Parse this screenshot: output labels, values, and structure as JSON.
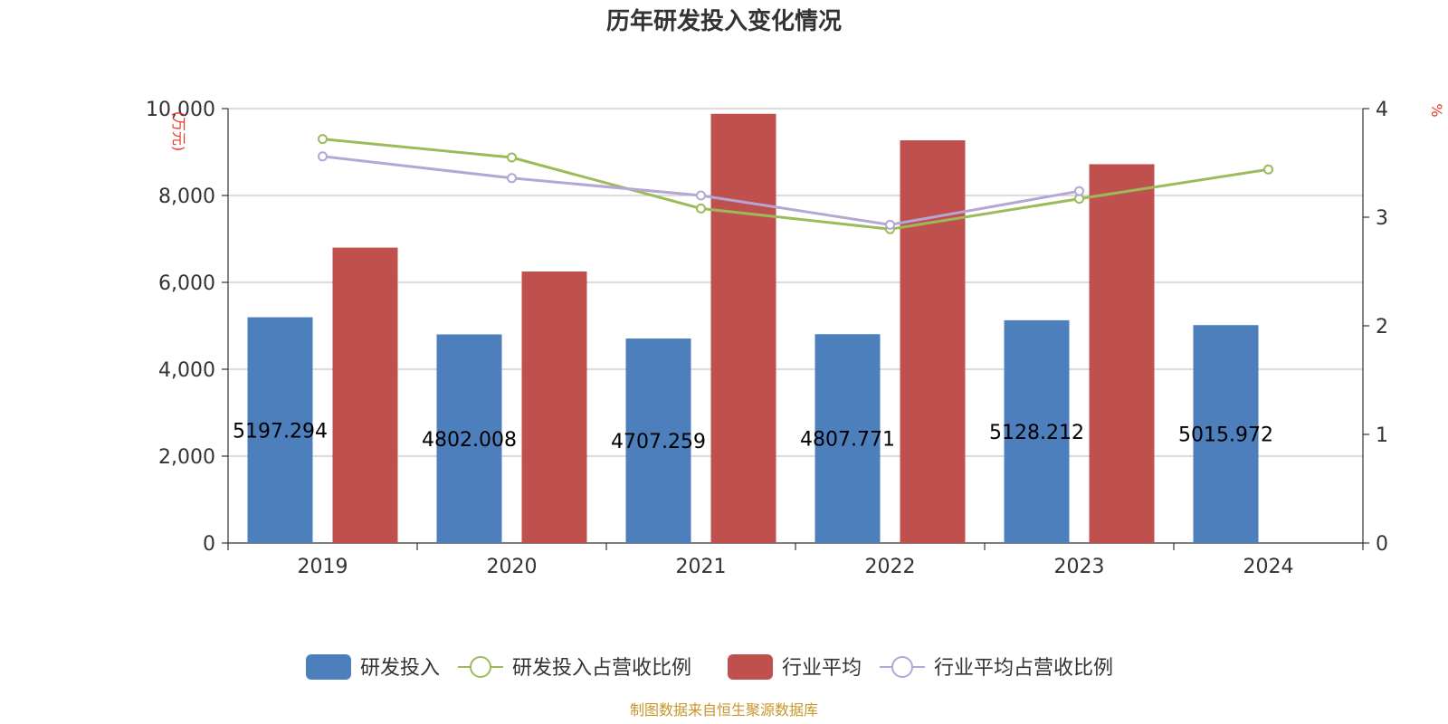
{
  "chart_data": {
    "type": "bar",
    "title": "历年研发投入变化情况",
    "categories": [
      "2019",
      "2020",
      "2021",
      "2022",
      "2023",
      "2024"
    ],
    "y_left": {
      "unit": "(万元)",
      "min": 0,
      "max": 10000,
      "ticks": [
        "0",
        "2,000",
        "4,000",
        "6,000",
        "8,000",
        "10,000"
      ]
    },
    "y_right": {
      "unit": "%",
      "min": 0,
      "max": 4,
      "ticks": [
        "0",
        "1",
        "2",
        "3",
        "4"
      ]
    },
    "grid": true,
    "legend_position": "bottom",
    "series": [
      {
        "name": "研发投入",
        "type": "bar",
        "axis": "left",
        "color": "#4e7fbd",
        "values": [
          5197.294,
          4802.008,
          4707.259,
          4807.771,
          5128.212,
          5015.972
        ],
        "labels": [
          "5197.294",
          "4802.008",
          "4707.259",
          "4807.771",
          "5128.212",
          "5015.972"
        ]
      },
      {
        "name": "研发投入占营收比例",
        "type": "line",
        "axis": "right",
        "color": "#9bbb59",
        "values": [
          3.72,
          3.55,
          3.08,
          2.89,
          3.17,
          3.44
        ]
      },
      {
        "name": "行业平均",
        "type": "bar",
        "axis": "left",
        "color": "#c0504d",
        "values": [
          6800,
          6250,
          9880,
          9270,
          8720,
          null
        ]
      },
      {
        "name": "行业平均占营收比例",
        "type": "line",
        "axis": "right",
        "color": "#b4a7d6",
        "values": [
          3.56,
          3.36,
          3.2,
          2.93,
          3.24,
          null
        ]
      }
    ]
  },
  "source_note": "制图数据来自恒生聚源数据库"
}
